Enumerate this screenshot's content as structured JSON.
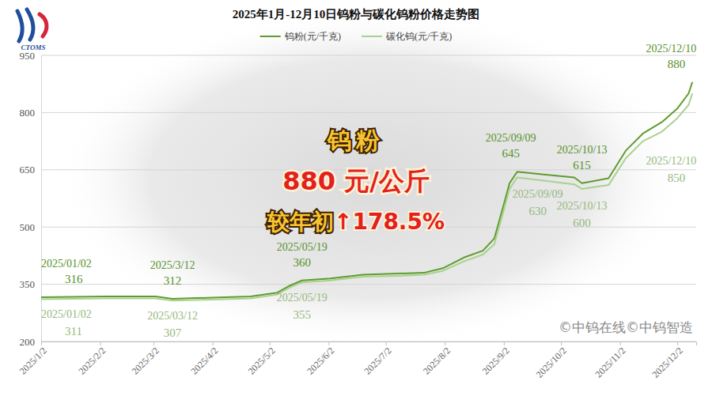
{
  "chart_data": {
    "type": "line",
    "title": "2025年1月-12月10日钨粉与碳化钨粉价格走势图",
    "logo_text": "CTOMS",
    "source": "©中钨在线©中钨智造",
    "legend": "top",
    "grid": true,
    "x": [
      "2025-01-02",
      "2025-02-05",
      "2025-03-03",
      "2025-03-12",
      "2025-04-02",
      "2025-04-22",
      "2025-05-06",
      "2025-05-12",
      "2025-05-19",
      "2025-06-03",
      "2025-06-20",
      "2025-07-08",
      "2025-07-22",
      "2025-08-01",
      "2025-08-12",
      "2025-08-22",
      "2025-08-28",
      "2025-09-02",
      "2025-09-05",
      "2025-09-09",
      "2025-09-22",
      "2025-10-09",
      "2025-10-13",
      "2025-10-27",
      "2025-11-05",
      "2025-11-14",
      "2025-11-24",
      "2025-12-02",
      "2025-12-08",
      "2025-12-10"
    ],
    "xlim": [
      "2025-01-02",
      "2025-12-12"
    ],
    "xticks": [
      {
        "value": "2025-01-02",
        "label": "2025/1/2"
      },
      {
        "value": "2025-02-02",
        "label": "2025/2/2"
      },
      {
        "value": "2025-03-02",
        "label": "2025/3/2"
      },
      {
        "value": "2025-04-02",
        "label": "2025/4/2"
      },
      {
        "value": "2025-05-02",
        "label": "2025/5/2"
      },
      {
        "value": "2025-06-02",
        "label": "2025/6/2"
      },
      {
        "value": "2025-07-02",
        "label": "2025/7/2"
      },
      {
        "value": "2025-08-02",
        "label": "2025/8/2"
      },
      {
        "value": "2025-09-02",
        "label": "2025/9/2"
      },
      {
        "value": "2025-10-02",
        "label": "2025/10/2"
      },
      {
        "value": "2025-11-02",
        "label": "2025/11/2"
      },
      {
        "value": "2025-12-02",
        "label": "2025/12/2"
      }
    ],
    "ylim": [
      200,
      950
    ],
    "yticks": [
      200,
      350,
      500,
      650,
      800,
      950
    ],
    "series": [
      {
        "name": "钨粉(元/千克)",
        "color": "#5e9c2e",
        "values": [
          316,
          318,
          318,
          312,
          315,
          318,
          328,
          345,
          360,
          365,
          375,
          378,
          380,
          392,
          420,
          438,
          470,
          560,
          615,
          645,
          638,
          630,
          615,
          628,
          700,
          745,
          775,
          810,
          850,
          880
        ],
        "annotations": [
          {
            "x": "2025-01-02",
            "label": "2025/01/02",
            "value": 316
          },
          {
            "x": "2025-03-12",
            "label": "2025/3/12",
            "value": 312
          },
          {
            "x": "2025-05-19",
            "label": "2025/05/19",
            "value": 360
          },
          {
            "x": "2025-09-09",
            "label": "2025/09/09",
            "value": 645
          },
          {
            "x": "2025-10-13",
            "label": "2025/10/13",
            "value": 615
          },
          {
            "x": "2025-12-10",
            "label": "2025/12/10",
            "value": 880
          }
        ]
      },
      {
        "name": "碳化钨(元/千克)",
        "color": "#a9d18e",
        "values": [
          311,
          313,
          313,
          307,
          310,
          313,
          323,
          340,
          355,
          360,
          370,
          372,
          375,
          385,
          410,
          428,
          455,
          545,
          600,
          630,
          622,
          612,
          600,
          610,
          680,
          725,
          750,
          785,
          820,
          850
        ],
        "annotations": [
          {
            "x": "2025-01-02",
            "label": "2025/01/02",
            "value": 311
          },
          {
            "x": "2025-03-12",
            "label": "2025/03/12",
            "value": 307
          },
          {
            "x": "2025-05-19",
            "label": "2025/05/19",
            "value": 355
          },
          {
            "x": "2025-09-09",
            "label": "2025/09/09",
            "value": 630
          },
          {
            "x": "2025-10-13",
            "label": "2025/10/13",
            "value": 600
          },
          {
            "x": "2025-12-10",
            "label": "2025/12/10",
            "value": 850
          }
        ]
      }
    ],
    "highlight": {
      "title": "钨粉",
      "value_text": "880 元/公斤",
      "change_label": "较年初",
      "change_value": "↑178.5%"
    }
  }
}
